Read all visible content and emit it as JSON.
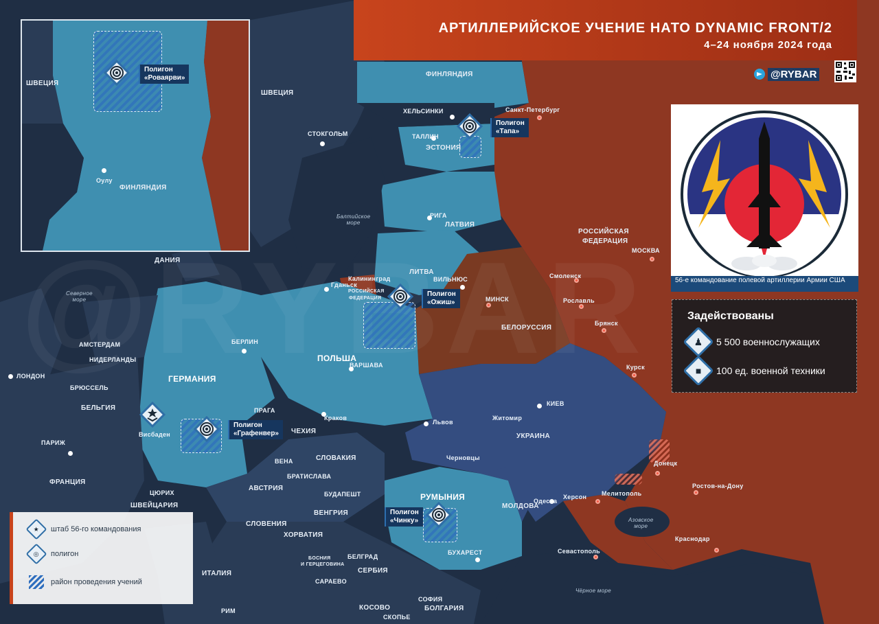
{
  "title": {
    "main": "АРТИЛЛЕРИЙСКОЕ УЧЕНИЕ НАТО DYNAMIC FRONT/2",
    "dates": "4–24 ноября 2024 года"
  },
  "brand": {
    "name": "@RYBAR",
    "icon": "telegram-icon"
  },
  "watermark": "@RYBAR",
  "colors": {
    "nato_countries": "#3f8fb0",
    "russia": "#8e3722",
    "belarus": "#7a3a22",
    "ukraine": "#344d80",
    "accent": "#c8441c",
    "label_bg": "#16365e"
  },
  "inset": {
    "country": "ФИНЛЯНДИЯ",
    "sweden": "ШВЕЦИЯ",
    "city": "Оулу",
    "polygon": {
      "line1": "Полигон",
      "line2": "«Роваярви»"
    }
  },
  "polygons": [
    {
      "id": "tapa",
      "line1": "Полигон",
      "line2": "«Тапа»"
    },
    {
      "id": "orzysz",
      "line1": "Полигон",
      "line2": "«Ожиш»"
    },
    {
      "id": "grafenwoehr",
      "line1": "Полигон",
      "line2": "«Графенвер»"
    },
    {
      "id": "cincu",
      "line1": "Полигон",
      "line2": "«Чинку»"
    }
  ],
  "hq": {
    "city": "Висбаден"
  },
  "countries": {
    "finland": "ФИНЛЯНДИЯ",
    "sweden": "ШВЕЦИЯ",
    "estonia": "ЭСТОНИЯ",
    "latvia": "ЛАТВИЯ",
    "lithuania": "ЛИТВА",
    "russia_line1": "РОССИЙСКАЯ",
    "russia_line2": "ФЕДЕРАЦИЯ",
    "kaliningrad_line1": "РОССИЙСКАЯ",
    "kaliningrad_line2": "ФЕДЕРАЦИЯ",
    "belarus": "БЕЛОРУССИЯ",
    "poland": "ПОЛЬША",
    "germany": "ГЕРМАНИЯ",
    "denmark": "ДАНИЯ",
    "netherlands": "НИДЕРЛАНДЫ",
    "belgium": "БЕЛЬГИЯ",
    "france": "ФРАНЦИЯ",
    "switzerland": "ШВЕЙЦАРИЯ",
    "austria": "АВСТРИЯ",
    "czech": "ЧЕХИЯ",
    "slovakia": "СЛОВАКИЯ",
    "hungary": "ВЕНГРИЯ",
    "slovenia": "СЛОВЕНИЯ",
    "croatia": "ХОРВАТИЯ",
    "bosnia_line1": "БОСНИЯ",
    "bosnia_line2": "И ГЕРЦЕГОВИНА",
    "serbia": "СЕРБИЯ",
    "italy": "ИТАЛИЯ",
    "kosovo": "КОСОВО",
    "bulgaria": "БОЛГАРИЯ",
    "ukraine": "УКРАИНА",
    "romania": "РУМЫНИЯ",
    "moldova": "МОЛДОВА"
  },
  "cities": {
    "helsinki": "ХЕЛЬСИНКИ",
    "stockholm": "СТОКГОЛЬМ",
    "tallinn": "ТАЛЛИН",
    "riga": "РИГА",
    "spb": "Санкт-Петербург",
    "moscow": "МОСКВА",
    "smolensk": "Смоленск",
    "roslavl": "Рославль",
    "bryansk": "Брянск",
    "kursk": "Курск",
    "vilnius": "ВИЛЬНЮС",
    "minsk": "МИНСК",
    "kaliningrad": "Калининград",
    "gdansk": "Гданьск",
    "berlin": "БЕРЛИН",
    "warsaw": "ВАРШАВА",
    "krakow": "Краков",
    "amsterdam": "АМСТЕРДАМ",
    "london": "ЛОНДОН",
    "brussels": "БРЮССЕЛЬ",
    "paris": "ПАРИЖ",
    "prague": "ПРАГА",
    "vienna": "ВЕНА",
    "bratislava": "БРАТИСЛАВА",
    "budapest": "БУДАПЕШТ",
    "zurich": "ЦЮРИХ",
    "belgrade": "БЕЛГРАД",
    "sarajevo": "САРАЕВО",
    "sofia": "СОФИЯ",
    "skopje": "СКОПЬЕ",
    "rome": "РИМ",
    "bucharest": "БУХАРЕСТ",
    "lviv": "Львов",
    "zhytomyr": "Житомир",
    "kyiv": "КИЕВ",
    "chernivtsi": "Черновцы",
    "odesa": "Одесса",
    "kherson": "Херсон",
    "melitopol": "Мелитополь",
    "donetsk": "Донецк",
    "rostov": "Ростов-на-Дону",
    "sevastopol": "Севастополь",
    "krasnodar": "Краснодар"
  },
  "seas": {
    "baltic_line1": "Балтийское",
    "baltic_line2": "море",
    "north_line1": "Северное",
    "north_line2": "море",
    "azov_line1": "Азовское",
    "azov_line2": "море",
    "black": "Чёрное море"
  },
  "emblem": {
    "caption": "56-е командование полевой артиллерии Армии США"
  },
  "stats": {
    "heading": "Задействованы",
    "items": [
      {
        "icon": "soldier-icon",
        "text": "5 500 военнослужащих"
      },
      {
        "icon": "howitzer-icon",
        "text": "100 ед. военной техники"
      }
    ]
  },
  "legend": {
    "items": [
      {
        "icon": "hq-star-icon",
        "label": "штаб 56-го командования"
      },
      {
        "icon": "target-icon",
        "label": "полигон"
      },
      {
        "icon": "hatch-icon",
        "label": "район проведения учений"
      }
    ]
  }
}
